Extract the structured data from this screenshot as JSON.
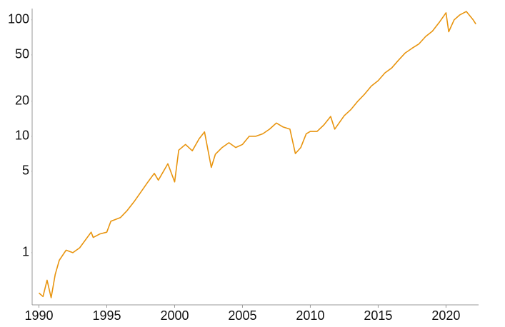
{
  "chart_data": {
    "type": "line",
    "log_scale": true,
    "color": "#e8940e",
    "x": [
      1990.0,
      1990.3,
      1990.6,
      1990.9,
      1991.2,
      1991.5,
      1992.0,
      1992.5,
      1993.0,
      1993.85,
      1994.0,
      1994.5,
      1995.0,
      1995.3,
      1996.0,
      1996.5,
      1997.0,
      1997.5,
      1998.0,
      1998.5,
      1998.8,
      1999.5,
      2000.0,
      2000.3,
      2000.8,
      2001.3,
      2001.8,
      2002.2,
      2002.7,
      2003.0,
      2003.5,
      2004.0,
      2004.5,
      2005.0,
      2005.5,
      2006.0,
      2006.5,
      2007.0,
      2007.5,
      2008.0,
      2008.5,
      2008.9,
      2009.3,
      2009.7,
      2010.0,
      2010.5,
      2011.0,
      2011.5,
      2011.8,
      2012.5,
      2013.0,
      2013.5,
      2014.0,
      2014.5,
      2015.0,
      2015.5,
      2016.0,
      2016.5,
      2017.0,
      2017.5,
      2018.0,
      2018.5,
      2019.0,
      2019.5,
      2020.0,
      2020.2,
      2020.6,
      2021.0,
      2021.5,
      2022.0,
      2022.2
    ],
    "values": [
      0.45,
      0.42,
      0.58,
      0.41,
      0.65,
      0.86,
      1.05,
      1.0,
      1.1,
      1.5,
      1.35,
      1.45,
      1.5,
      1.86,
      2.0,
      2.3,
      2.73,
      3.3,
      4.0,
      4.8,
      4.2,
      5.8,
      4.05,
      7.6,
      8.5,
      7.5,
      9.5,
      10.9,
      5.4,
      7.0,
      8.0,
      8.8,
      8.0,
      8.5,
      10,
      10,
      10.5,
      11.5,
      13,
      12,
      11.5,
      7.1,
      8,
      10.5,
      11,
      11,
      12.5,
      14.8,
      11.5,
      15,
      17,
      20,
      23,
      27,
      30,
      35,
      38.6,
      45,
      52,
      57,
      62,
      72,
      80,
      95,
      115,
      79,
      100,
      110,
      118,
      100,
      92
    ],
    "xlim": [
      1989.5,
      2022.4
    ],
    "xticks": [
      1990,
      1995,
      2000,
      2005,
      2010,
      2015,
      2020
    ],
    "ylim": [
      0.356,
      125
    ],
    "yticks": [
      1,
      5,
      10,
      20,
      50,
      100
    ],
    "grid": false
  }
}
